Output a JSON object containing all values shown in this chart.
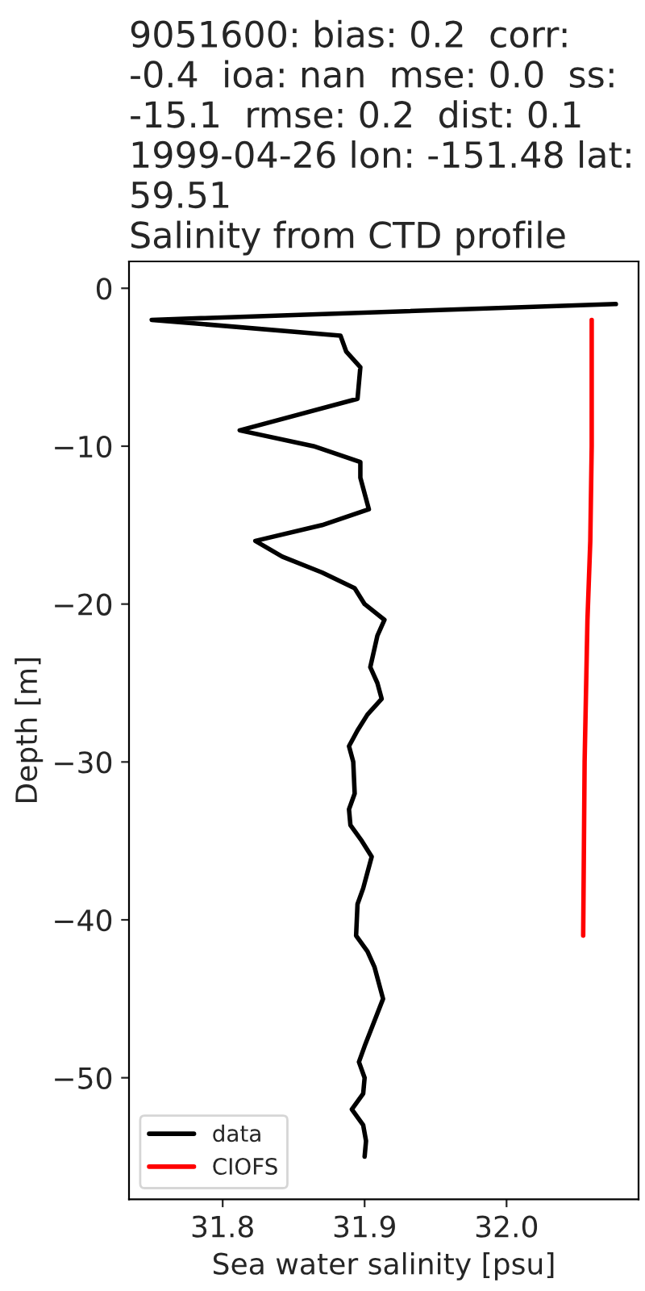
{
  "chart_data": {
    "type": "line",
    "title": "9051600: bias: 0.2  corr:\n-0.4  ioa: nan  mse: 0.0  ss:\n-15.1  rmse: 0.2  dist: 0.1\n1999-04-26 lon: -151.48 lat:\n59.51\nSalinity from CTD profile",
    "xlabel": "Sea water salinity [psu]",
    "ylabel": "Depth [m]",
    "series": [
      {
        "name": "data",
        "color": "#000000",
        "line_style": "solid",
        "x": [
          32.077,
          31.75,
          31.883,
          31.887,
          31.897,
          31.895,
          31.812,
          31.864,
          31.897,
          31.897,
          31.903,
          31.87,
          31.823,
          31.842,
          31.87,
          31.893,
          31.9,
          31.914,
          31.909,
          31.904,
          31.909,
          31.912,
          31.902,
          31.895,
          31.889,
          31.892,
          31.893,
          31.889,
          31.89,
          31.898,
          31.905,
          31.902,
          31.899,
          31.895,
          31.894,
          31.902,
          31.907,
          31.913,
          31.9,
          31.896,
          31.9,
          31.899,
          31.891,
          31.899,
          31.901,
          31.9
        ],
        "values": [
          -1,
          -2,
          -3,
          -4,
          -5,
          -7,
          -9,
          -10,
          -11,
          -12,
          -14,
          -15,
          -16,
          -17,
          -18,
          -19,
          -20,
          -21,
          -22,
          -24,
          -25,
          -26,
          -27,
          -28,
          -29,
          -30,
          -32,
          -33,
          -34,
          -35,
          -36,
          -37,
          -38,
          -39,
          -41,
          -42,
          -43,
          -45,
          -48,
          -49,
          -50,
          -51,
          -52,
          -53,
          -54,
          -55
        ]
      },
      {
        "name": "CIOFS",
        "color": "#ff0000",
        "line_style": "solid",
        "x": [
          32.06,
          32.06,
          32.059,
          32.057,
          32.055,
          32.054
        ],
        "values": [
          -2,
          -10,
          -16,
          -21,
          -30,
          -41
        ]
      }
    ],
    "xlim": [
      31.734,
      32.093
    ],
    "ylim": [
      -57.7,
      1.7
    ],
    "xticks": [
      31.8,
      31.9,
      {
        "value": 32.0,
        "label": "32.0"
      }
    ],
    "yticks": [
      0,
      {
        "value": -10,
        "label": "−10"
      },
      {
        "value": -20,
        "label": "−20"
      },
      {
        "value": -30,
        "label": "−30"
      },
      {
        "value": -40,
        "label": "−40"
      },
      {
        "value": -50,
        "label": "−50"
      }
    ],
    "legend": "bottom left"
  }
}
